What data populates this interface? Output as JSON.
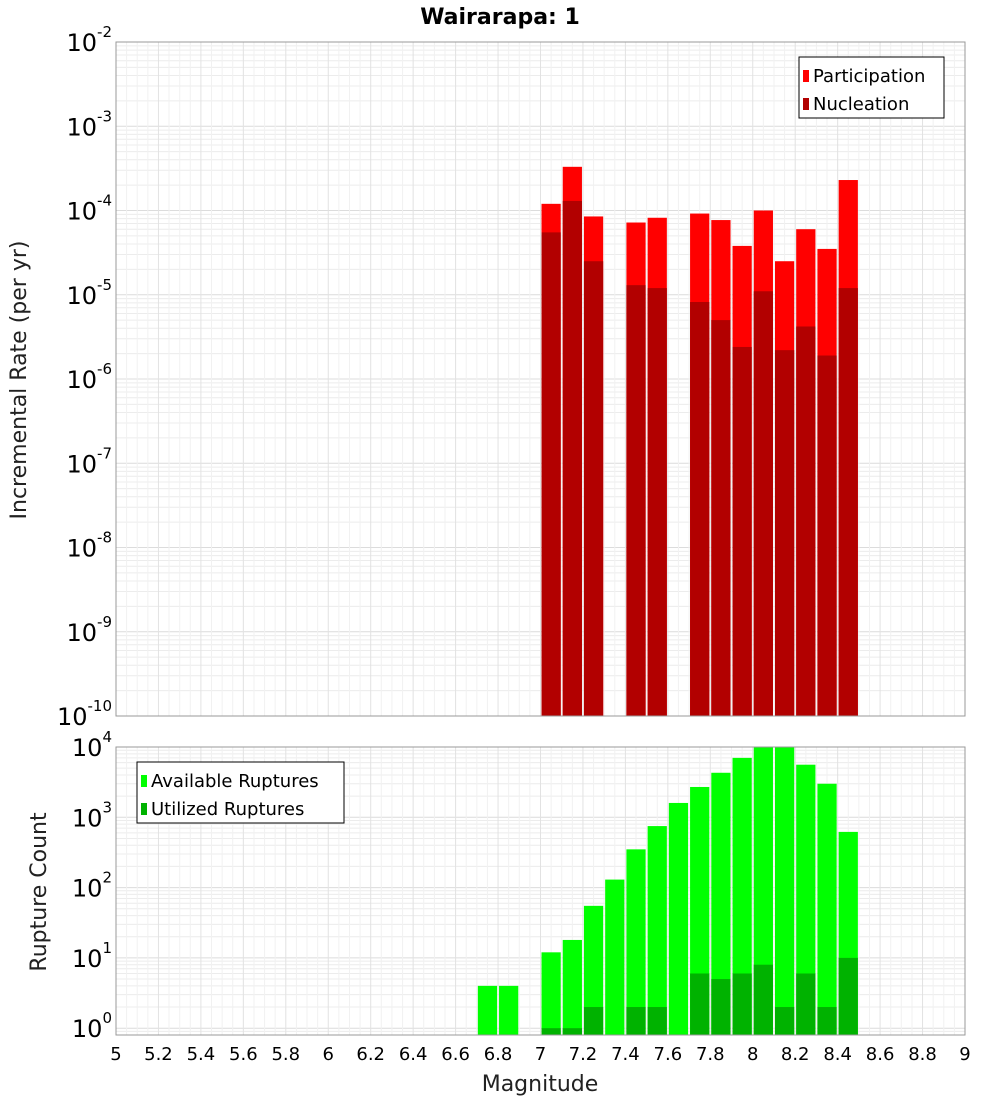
{
  "chart_data": [
    {
      "type": "bar",
      "panel": "top",
      "title": "Wairarapa: 1",
      "xlabel": "Magnitude",
      "ylabel": "Incremental Rate (per yr)",
      "yscale": "log",
      "ylim": [
        1e-10,
        0.01
      ],
      "xlim": [
        5,
        9
      ],
      "ytick_exponents": [
        -10,
        -9,
        -8,
        -7,
        -6,
        -5,
        -4,
        -3,
        -2
      ],
      "grid": true,
      "legend_position": "top-right",
      "x": [
        7.05,
        7.15,
        7.25,
        7.45,
        7.55,
        7.75,
        7.85,
        7.95,
        8.05,
        8.15,
        8.25,
        8.35,
        8.45
      ],
      "series": [
        {
          "name": "Participation",
          "color": "#ff0000",
          "values": [
            0.00012,
            0.00033,
            8.5e-05,
            7.2e-05,
            8.2e-05,
            9.2e-05,
            7.7e-05,
            3.8e-05,
            0.0001,
            2.5e-05,
            6e-05,
            3.5e-05,
            0.00023
          ]
        },
        {
          "name": "Nucleation",
          "color": "#b20000",
          "values": [
            5.5e-05,
            0.00013,
            2.5e-05,
            1.3e-05,
            1.2e-05,
            8.2e-06,
            5e-06,
            2.4e-06,
            1.1e-05,
            2.2e-06,
            4.2e-06,
            1.9e-06,
            1.2e-05
          ]
        }
      ]
    },
    {
      "type": "bar",
      "panel": "bottom",
      "xlabel": "Magnitude",
      "ylabel": "Rupture Count",
      "yscale": "log",
      "ylim": [
        0.8,
        10000
      ],
      "xlim": [
        5,
        9
      ],
      "xticks": [
        5,
        5.2,
        5.4,
        5.6,
        5.8,
        6,
        6.2,
        6.4,
        6.6,
        6.8,
        7,
        7.2,
        7.4,
        7.6,
        7.8,
        8,
        8.2,
        8.4,
        8.6,
        8.8,
        9
      ],
      "ytick_exponents": [
        0,
        1,
        2,
        3,
        4
      ],
      "grid": true,
      "legend_position": "top-left",
      "x": [
        6.75,
        6.85,
        7.05,
        7.15,
        7.25,
        7.35,
        7.45,
        7.55,
        7.65,
        7.75,
        7.85,
        7.95,
        8.05,
        8.15,
        8.25,
        8.35,
        8.45
      ],
      "series": [
        {
          "name": "Available Ruptures",
          "color": "#00ff00",
          "values": [
            4,
            4,
            12,
            18,
            55,
            130,
            350,
            750,
            1600,
            2700,
            4300,
            7000,
            10000,
            10000,
            5600,
            3000,
            620
          ]
        },
        {
          "name": "Utilized Ruptures",
          "color": "#00b200",
          "values": [
            0,
            0,
            1,
            1,
            2,
            0,
            2,
            2,
            0,
            6,
            5,
            6,
            8,
            2,
            6,
            2,
            10
          ]
        }
      ]
    }
  ]
}
